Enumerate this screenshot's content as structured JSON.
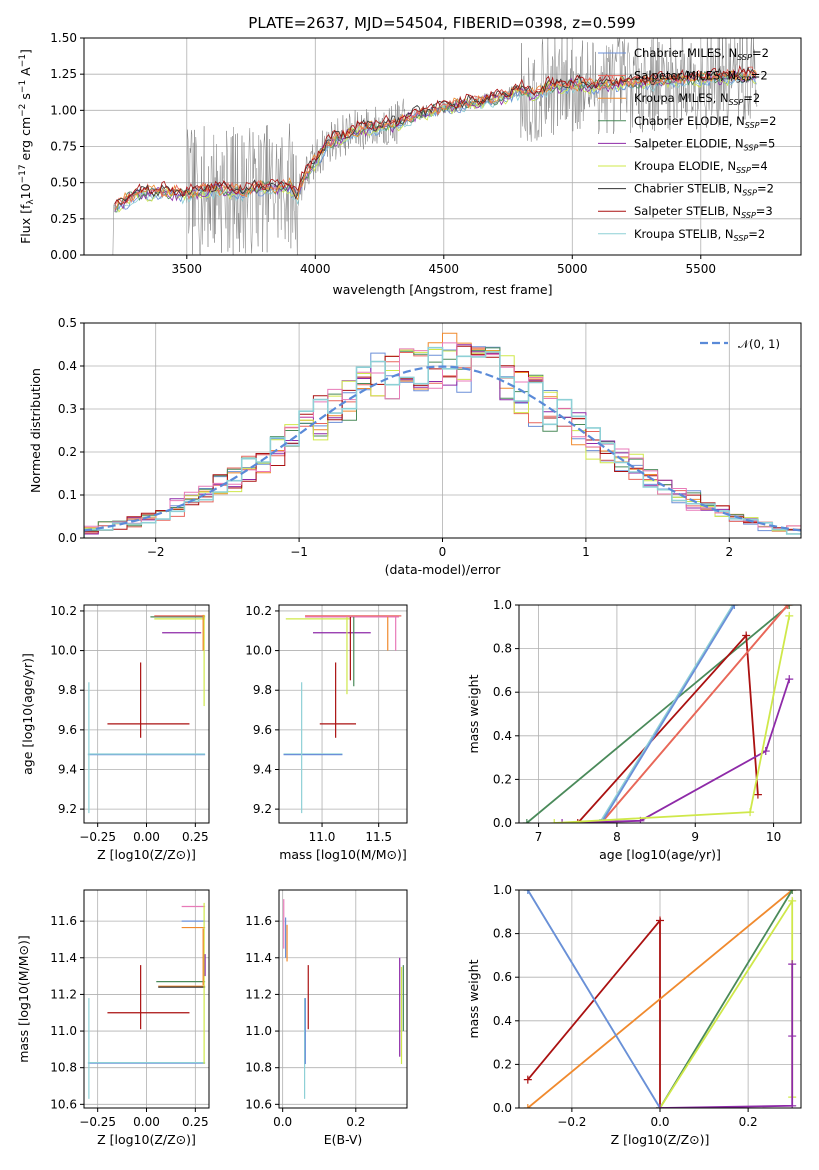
{
  "figure": {
    "title": "PLATE=2637, MJD=54504, FIBERID=0398, z=0.599"
  },
  "colors": {
    "Chabrier MILES": "#6b8fd8",
    "Salpeter MILES": "#e8665d",
    "Kroupa MILES": "#f08a2e",
    "Chabrier ELODIE": "#4a8a5a",
    "Salpeter ELODIE": "#8e2aa8",
    "Kroupa ELODIE": "#cfe84a",
    "Chabrier STELIB": "#333333",
    "Salpeter STELIB": "#aa1111",
    "Kroupa STELIB": "#8ed0d6",
    "observed": "#808080",
    "extra_pink": "#e87ab8",
    "normal": "#5a8ad8"
  },
  "chart_data": [
    {
      "id": "spectrum",
      "type": "line",
      "title": "PLATE=2637, MJD=54504, FIBERID=0398, z=0.599",
      "xlabel": "wavelength [Angstrom, rest frame]",
      "ylabel": "Flux [f_λ 10^-17 erg cm^-2 s^-1 A^-1]",
      "xlim": [
        3100,
        5890
      ],
      "ylim": [
        0,
        1.5
      ],
      "xticks": [
        3500,
        4000,
        4500,
        5000,
        5500
      ],
      "yticks": [
        0.0,
        0.25,
        0.5,
        0.75,
        1.0,
        1.25,
        1.5
      ],
      "yticklabels": [
        "0.00",
        "0.25",
        "0.50",
        "0.75",
        "1.00",
        "1.25",
        "1.50"
      ],
      "legend_position": "upper-right",
      "legend": [
        {
          "pre": "Chabrier MILES, N",
          "sub": "SSP",
          "post": "=2",
          "key": "Chabrier MILES"
        },
        {
          "pre": "Salpeter MILES, N",
          "sub": "SSP",
          "post": "=2",
          "key": "Salpeter MILES"
        },
        {
          "pre": "Kroupa MILES, N",
          "sub": "SSP",
          "post": "=2",
          "key": "Kroupa MILES"
        },
        {
          "pre": "Chabrier ELODIE, N",
          "sub": "SSP",
          "post": "=2",
          "key": "Chabrier ELODIE"
        },
        {
          "pre": "Salpeter ELODIE, N",
          "sub": "SSP",
          "post": "=5",
          "key": "Salpeter ELODIE"
        },
        {
          "pre": "Kroupa ELODIE, N",
          "sub": "SSP",
          "post": "=4",
          "key": "Kroupa ELODIE"
        },
        {
          "pre": "Chabrier STELIB, N",
          "sub": "SSP",
          "post": "=2",
          "key": "Chabrier STELIB"
        },
        {
          "pre": "Salpeter STELIB, N",
          "sub": "SSP",
          "post": "=3",
          "key": "Salpeter STELIB"
        },
        {
          "pre": "Kroupa STELIB, N",
          "sub": "SSP",
          "post": "=2",
          "key": "Kroupa STELIB"
        }
      ],
      "model_continuum": [
        [
          3220,
          0.33
        ],
        [
          3300,
          0.42
        ],
        [
          3400,
          0.44
        ],
        [
          3500,
          0.42
        ],
        [
          3600,
          0.46
        ],
        [
          3650,
          0.45
        ],
        [
          3700,
          0.44
        ],
        [
          3750,
          0.45
        ],
        [
          3800,
          0.47
        ],
        [
          3850,
          0.46
        ],
        [
          3900,
          0.48
        ],
        [
          3930,
          0.4
        ],
        [
          3950,
          0.52
        ],
        [
          4000,
          0.65
        ],
        [
          4050,
          0.78
        ],
        [
          4100,
          0.82
        ],
        [
          4200,
          0.88
        ],
        [
          4300,
          0.9
        ],
        [
          4400,
          0.97
        ],
        [
          4500,
          1.02
        ],
        [
          4600,
          1.05
        ],
        [
          4700,
          1.08
        ],
        [
          4800,
          1.14
        ],
        [
          4850,
          1.1
        ],
        [
          4900,
          1.16
        ],
        [
          5000,
          1.18
        ],
        [
          5100,
          1.17
        ],
        [
          5200,
          1.19
        ],
        [
          5300,
          1.2
        ],
        [
          5400,
          1.21
        ],
        [
          5500,
          1.22
        ],
        [
          5600,
          1.23
        ],
        [
          5700,
          1.24
        ]
      ],
      "observed_start": 3210
    },
    {
      "id": "residuals",
      "type": "bar",
      "xlabel": "(data-model)/error",
      "ylabel": "Normed distribution",
      "xlim": [
        -2.5,
        2.5
      ],
      "ylim": [
        0,
        0.5
      ],
      "xticks": [
        -2,
        -1,
        0,
        1,
        2
      ],
      "xticklabels": [
        "−2",
        "−1",
        "0",
        "1",
        "2"
      ],
      "yticks": [
        0.0,
        0.1,
        0.2,
        0.3,
        0.4,
        0.5
      ],
      "yticklabels": [
        "0.0",
        "0.1",
        "0.2",
        "0.3",
        "0.4",
        "0.5"
      ],
      "legend_label": "𝒩(0, 1)",
      "legend_position": "upper-right",
      "bin_width": 0.1
    },
    {
      "id": "age-vs-Z",
      "type": "scatter",
      "xlabel": "Z [log10(Z/Z⊙)]",
      "ylabel": "age [log10(age/yr)]",
      "xlim": [
        -0.32,
        0.32
      ],
      "ylim": [
        9.13,
        10.23
      ],
      "xticks": [
        -0.25,
        0.0,
        0.25
      ],
      "xticklabels": [
        "−0.25",
        "0.00",
        "0.25"
      ],
      "yticks": [
        9.2,
        9.4,
        9.6,
        9.8,
        10.0,
        10.2
      ],
      "yticklabels": [
        "9.2",
        "9.4",
        "9.6",
        "9.8",
        "10.0",
        "10.2"
      ]
    },
    {
      "id": "age-vs-mass",
      "type": "scatter",
      "xlabel": "mass [log10(M/M⊙)]",
      "ylabel": "",
      "xlim": [
        10.62,
        11.75
      ],
      "ylim": [
        9.13,
        10.23
      ],
      "xticks": [
        11.0,
        11.5
      ],
      "xticklabels": [
        "11.0",
        "11.5"
      ],
      "yticks": [
        9.2,
        9.4,
        9.6,
        9.8,
        10.0,
        10.2
      ],
      "yticklabels": [
        "9.2",
        "9.4",
        "9.6",
        "9.8",
        "10.0",
        "10.2"
      ]
    },
    {
      "id": "massweight-vs-age",
      "type": "line",
      "xlabel": "age [log10(age/yr)]",
      "ylabel": "mass weight",
      "xlim": [
        6.75,
        10.35
      ],
      "ylim": [
        0,
        1
      ],
      "xticks": [
        7,
        8,
        9,
        10
      ],
      "xticklabels": [
        "7",
        "8",
        "9",
        "10"
      ],
      "yticks": [
        0.0,
        0.2,
        0.4,
        0.6,
        0.8,
        1.0
      ],
      "yticklabels": [
        "0.0",
        "0.2",
        "0.4",
        "0.6",
        "0.8",
        "1.0"
      ],
      "series": [
        {
          "key": "Chabrier ELODIE",
          "x": [
            6.85,
            10.2
          ],
          "y": [
            0.0,
            1.0
          ]
        },
        {
          "key": "Salpeter STELIB",
          "x": [
            7.5,
            9.65,
            9.8
          ],
          "y": [
            0.0,
            0.86,
            0.13
          ]
        },
        {
          "key": "Kroupa MILES",
          "x": [
            7.8,
            10.18
          ],
          "y": [
            0.0,
            1.0
          ]
        },
        {
          "key": "Salpeter MILES",
          "x": [
            7.8,
            10.18
          ],
          "y": [
            0.0,
            1.0
          ]
        },
        {
          "key": "Kroupa STELIB",
          "x": [
            7.78,
            9.48
          ],
          "y": [
            0.0,
            1.0
          ]
        },
        {
          "key": "Chabrier MILES",
          "x": [
            7.8,
            9.5
          ],
          "y": [
            0.0,
            1.0
          ]
        },
        {
          "key": "Salpeter ELODIE",
          "x": [
            7.3,
            8.3,
            9.9,
            10.2
          ],
          "y": [
            0.0,
            0.01,
            0.33,
            0.66
          ]
        },
        {
          "key": "Kroupa ELODIE",
          "x": [
            7.2,
            9.7,
            10.2
          ],
          "y": [
            0.0,
            0.05,
            0.95
          ]
        }
      ]
    },
    {
      "id": "mass-vs-Z",
      "type": "scatter",
      "xlabel": "Z [log10(Z/Z⊙)]",
      "ylabel": "mass [log10(M/M⊙)]",
      "xlim": [
        -0.32,
        0.32
      ],
      "ylim": [
        10.58,
        11.77
      ],
      "xticks": [
        -0.25,
        0.0,
        0.25
      ],
      "xticklabels": [
        "−0.25",
        "0.00",
        "0.25"
      ],
      "yticks": [
        10.6,
        10.8,
        11.0,
        11.2,
        11.4,
        11.6
      ],
      "yticklabels": [
        "10.6",
        "10.8",
        "11.0",
        "11.2",
        "11.4",
        "11.6"
      ]
    },
    {
      "id": "mass-vs-EBV",
      "type": "scatter",
      "xlabel": "E(B-V)",
      "ylabel": "",
      "xlim": [
        -0.01,
        0.34
      ],
      "ylim": [
        10.58,
        11.77
      ],
      "xticks": [
        0.0,
        0.2
      ],
      "xticklabels": [
        "0.0",
        "0.2"
      ],
      "yticks": [
        10.6,
        10.8,
        11.0,
        11.2,
        11.4,
        11.6
      ],
      "yticklabels": [
        "10.6",
        "10.8",
        "11.0",
        "11.2",
        "11.4",
        "11.6"
      ]
    },
    {
      "id": "massweight-vs-Z",
      "type": "line",
      "xlabel": "Z [log10(Z/Z⊙)]",
      "ylabel": "mass weight",
      "xlim": [
        -0.32,
        0.32
      ],
      "ylim": [
        0,
        1
      ],
      "xticks": [
        -0.2,
        0.0,
        0.2
      ],
      "xticklabels": [
        "−0.2",
        "0.0",
        "0.2"
      ],
      "yticks": [
        0.0,
        0.2,
        0.4,
        0.6,
        0.8,
        1.0
      ],
      "yticklabels": [
        "0.0",
        "0.2",
        "0.4",
        "0.6",
        "0.8",
        "1.0"
      ],
      "series": [
        {
          "key": "Salpeter STELIB",
          "x": [
            -0.3,
            0.0,
            0.0
          ],
          "y": [
            0.13,
            0.86,
            0.0
          ]
        },
        {
          "key": "Kroupa MILES",
          "x": [
            -0.3,
            0.3
          ],
          "y": [
            0.0,
            1.0
          ]
        },
        {
          "key": "Kroupa STELIB",
          "x": [
            -0.3,
            0.0
          ],
          "y": [
            1.0,
            0.0
          ]
        },
        {
          "key": "Chabrier MILES",
          "x": [
            -0.3,
            0.0
          ],
          "y": [
            1.0,
            0.0
          ]
        },
        {
          "key": "Chabrier ELODIE",
          "x": [
            0.0,
            0.3
          ],
          "y": [
            0.0,
            1.0
          ]
        },
        {
          "key": "Kroupa ELODIE",
          "x": [
            0.0,
            0.3,
            0.3
          ],
          "y": [
            0.0,
            0.95,
            0.05
          ]
        },
        {
          "key": "Salpeter ELODIE",
          "x": [
            0.0,
            0.3,
            0.3,
            0.3
          ],
          "y": [
            0.0,
            0.01,
            0.33,
            0.66
          ]
        }
      ]
    }
  ]
}
